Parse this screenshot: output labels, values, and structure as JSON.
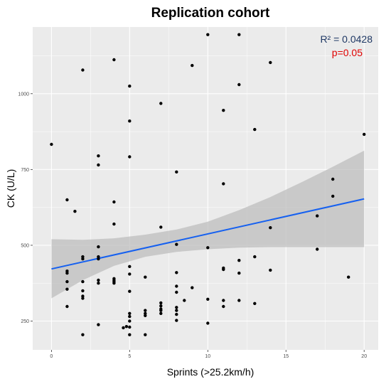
{
  "chart_data": {
    "type": "scatter",
    "title": "Replication cohort",
    "xlabel": "Sprints (>25.2km/h)",
    "ylabel": "CK (U/L)",
    "xlim": [
      -1.2,
      20.9
    ],
    "ylim": [
      155,
      1220
    ],
    "x_ticks": [
      0,
      5,
      10,
      15,
      20
    ],
    "y_ticks": [
      250,
      500,
      750,
      1000
    ],
    "x_tick_labels": [
      "0",
      "5",
      "10",
      "15",
      "20"
    ],
    "y_tick_labels": [
      "250",
      "500",
      "750",
      "1000"
    ],
    "grid": true,
    "legend": "none",
    "annotations": [
      {
        "text": "R² = 0.0428",
        "color": "#1f3864"
      },
      {
        "text": "p=0.05",
        "color": "#e00000"
      }
    ],
    "colors": {
      "points": "#000000",
      "fit_line": "#1560f0",
      "ci_band": "#bdbdbd",
      "panel": "#ebebeb",
      "grid": "#ffffff"
    },
    "points": [
      {
        "x": 0,
        "y": 833
      },
      {
        "x": 1,
        "y": 650
      },
      {
        "x": 1,
        "y": 415
      },
      {
        "x": 1,
        "y": 408
      },
      {
        "x": 1,
        "y": 380
      },
      {
        "x": 1,
        "y": 355
      },
      {
        "x": 1,
        "y": 298
      },
      {
        "x": 1.5,
        "y": 612
      },
      {
        "x": 2,
        "y": 1078
      },
      {
        "x": 2,
        "y": 462
      },
      {
        "x": 2,
        "y": 455
      },
      {
        "x": 2,
        "y": 380
      },
      {
        "x": 2,
        "y": 350
      },
      {
        "x": 2,
        "y": 332
      },
      {
        "x": 2,
        "y": 325
      },
      {
        "x": 2,
        "y": 205
      },
      {
        "x": 3,
        "y": 795
      },
      {
        "x": 3,
        "y": 765
      },
      {
        "x": 3,
        "y": 495
      },
      {
        "x": 3,
        "y": 462
      },
      {
        "x": 3,
        "y": 455
      },
      {
        "x": 3,
        "y": 385
      },
      {
        "x": 3,
        "y": 375
      },
      {
        "x": 3,
        "y": 238
      },
      {
        "x": 4,
        "y": 1112
      },
      {
        "x": 4,
        "y": 643
      },
      {
        "x": 4,
        "y": 570
      },
      {
        "x": 4,
        "y": 390
      },
      {
        "x": 4,
        "y": 385
      },
      {
        "x": 4,
        "y": 380
      },
      {
        "x": 4,
        "y": 375
      },
      {
        "x": 4.6,
        "y": 228
      },
      {
        "x": 4.8,
        "y": 232
      },
      {
        "x": 5,
        "y": 1025
      },
      {
        "x": 5,
        "y": 910
      },
      {
        "x": 5,
        "y": 792
      },
      {
        "x": 5,
        "y": 430
      },
      {
        "x": 5,
        "y": 405
      },
      {
        "x": 5,
        "y": 348
      },
      {
        "x": 5,
        "y": 275
      },
      {
        "x": 5,
        "y": 265
      },
      {
        "x": 5,
        "y": 250
      },
      {
        "x": 5,
        "y": 230
      },
      {
        "x": 5,
        "y": 205
      },
      {
        "x": 6,
        "y": 395
      },
      {
        "x": 6,
        "y": 285
      },
      {
        "x": 6,
        "y": 275
      },
      {
        "x": 6,
        "y": 268
      },
      {
        "x": 6,
        "y": 205
      },
      {
        "x": 7,
        "y": 968
      },
      {
        "x": 7,
        "y": 560
      },
      {
        "x": 7,
        "y": 310
      },
      {
        "x": 7,
        "y": 300
      },
      {
        "x": 7,
        "y": 290
      },
      {
        "x": 7,
        "y": 285
      },
      {
        "x": 7,
        "y": 275
      },
      {
        "x": 8,
        "y": 742
      },
      {
        "x": 8,
        "y": 503
      },
      {
        "x": 8,
        "y": 410
      },
      {
        "x": 8,
        "y": 365
      },
      {
        "x": 8,
        "y": 345
      },
      {
        "x": 8,
        "y": 295
      },
      {
        "x": 8,
        "y": 285
      },
      {
        "x": 8,
        "y": 272
      },
      {
        "x": 8,
        "y": 252
      },
      {
        "x": 8.5,
        "y": 318
      },
      {
        "x": 9,
        "y": 1093
      },
      {
        "x": 9,
        "y": 360
      },
      {
        "x": 10,
        "y": 1195
      },
      {
        "x": 10,
        "y": 492
      },
      {
        "x": 10,
        "y": 322
      },
      {
        "x": 10,
        "y": 243
      },
      {
        "x": 11,
        "y": 945
      },
      {
        "x": 11,
        "y": 703
      },
      {
        "x": 11,
        "y": 425
      },
      {
        "x": 11,
        "y": 420
      },
      {
        "x": 11,
        "y": 318
      },
      {
        "x": 11,
        "y": 298
      },
      {
        "x": 12,
        "y": 1195
      },
      {
        "x": 12,
        "y": 1030
      },
      {
        "x": 12,
        "y": 450
      },
      {
        "x": 12,
        "y": 408
      },
      {
        "x": 12,
        "y": 318
      },
      {
        "x": 13,
        "y": 882
      },
      {
        "x": 13,
        "y": 462
      },
      {
        "x": 13,
        "y": 308
      },
      {
        "x": 14,
        "y": 1103
      },
      {
        "x": 14,
        "y": 558
      },
      {
        "x": 14,
        "y": 418
      },
      {
        "x": 17,
        "y": 597
      },
      {
        "x": 17,
        "y": 487
      },
      {
        "x": 18,
        "y": 718
      },
      {
        "x": 18,
        "y": 662
      },
      {
        "x": 19,
        "y": 395
      },
      {
        "x": 20,
        "y": 866
      }
    ],
    "fit_line": {
      "x": [
        0,
        20
      ],
      "y": [
        422,
        653
      ]
    },
    "ci_band": {
      "x": [
        0,
        2,
        4,
        6,
        8,
        10,
        12,
        14,
        16,
        18,
        20
      ],
      "lower": [
        325,
        385,
        432,
        462,
        478,
        487,
        492,
        494,
        494,
        494,
        494
      ],
      "upper": [
        520,
        518,
        523,
        535,
        552,
        578,
        616,
        659,
        708,
        759,
        812
      ]
    }
  }
}
